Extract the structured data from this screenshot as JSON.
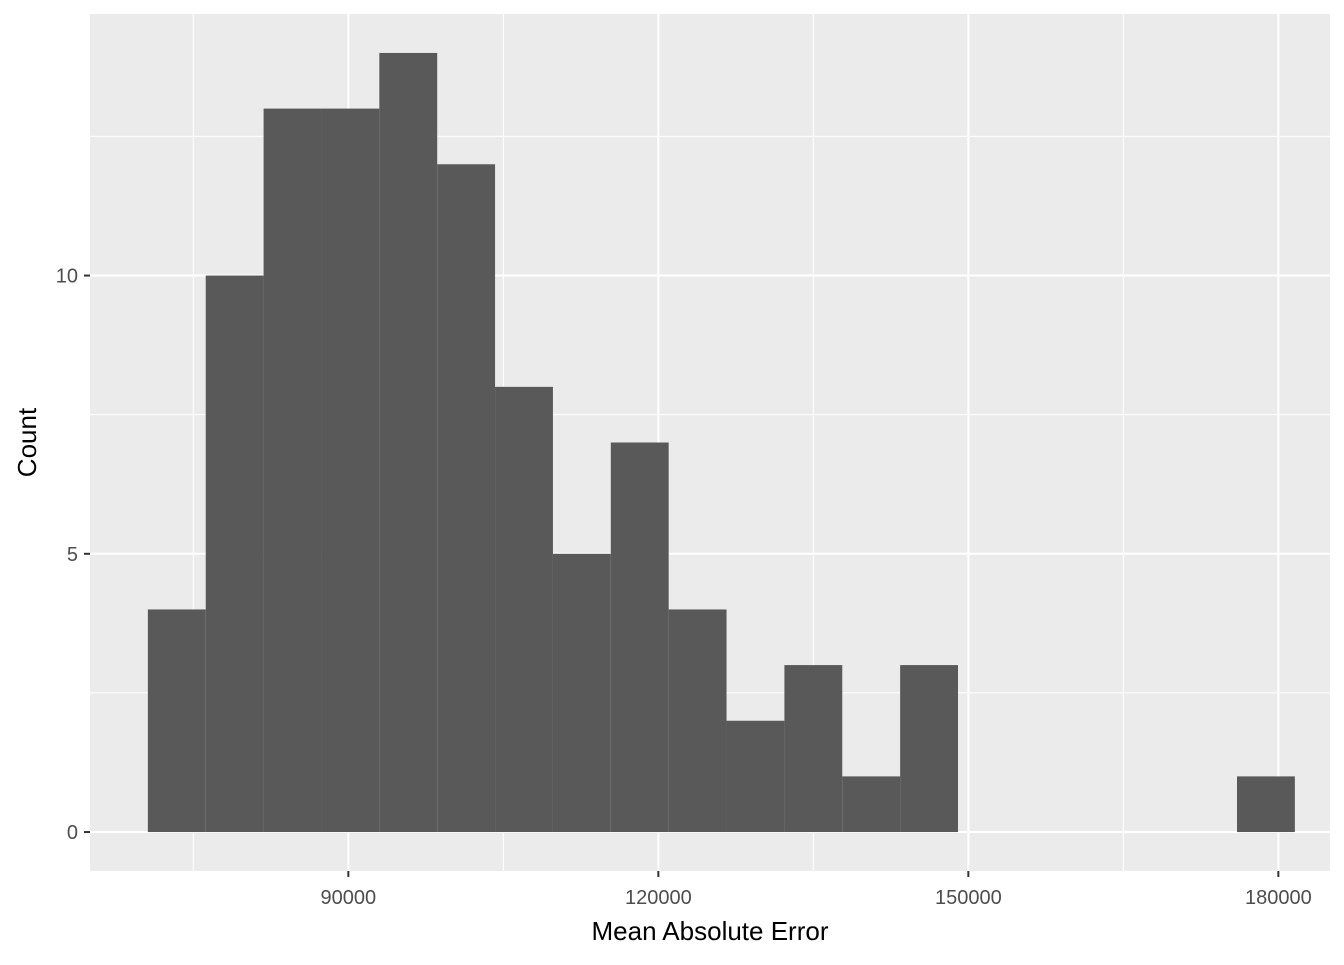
{
  "chart_data": {
    "type": "histogram",
    "xlabel": "Mean Absolute Error",
    "ylabel": "Count",
    "xlim": [
      65000,
      185000
    ],
    "ylim": [
      -0.7,
      14.7
    ],
    "x_ticks": [
      90000,
      120000,
      150000,
      180000
    ],
    "x_tick_labels": [
      "90000",
      "120000",
      "150000",
      "180000"
    ],
    "y_ticks": [
      0,
      5,
      10
    ],
    "y_tick_labels": [
      "0",
      "5",
      "10"
    ],
    "grid": true,
    "bin_width": 5600,
    "bins": [
      {
        "x_start": 70600,
        "x_end": 76200,
        "count": 4
      },
      {
        "x_start": 76200,
        "x_end": 81800,
        "count": 10
      },
      {
        "x_start": 81800,
        "x_end": 87400,
        "count": 13
      },
      {
        "x_start": 87400,
        "x_end": 93000,
        "count": 13
      },
      {
        "x_start": 93000,
        "x_end": 98600,
        "count": 14
      },
      {
        "x_start": 98600,
        "x_end": 104200,
        "count": 12
      },
      {
        "x_start": 104200,
        "x_end": 109800,
        "count": 8
      },
      {
        "x_start": 109800,
        "x_end": 115400,
        "count": 5
      },
      {
        "x_start": 115400,
        "x_end": 121000,
        "count": 7
      },
      {
        "x_start": 121000,
        "x_end": 126600,
        "count": 4
      },
      {
        "x_start": 126600,
        "x_end": 132200,
        "count": 2
      },
      {
        "x_start": 132200,
        "x_end": 137800,
        "count": 3
      },
      {
        "x_start": 137800,
        "x_end": 143400,
        "count": 1
      },
      {
        "x_start": 143400,
        "x_end": 149000,
        "count": 3
      },
      {
        "x_start": 176000,
        "x_end": 181600,
        "count": 1
      }
    ],
    "colors": {
      "panel": "#ebebeb",
      "grid": "#ffffff",
      "bar": "#595959"
    }
  }
}
